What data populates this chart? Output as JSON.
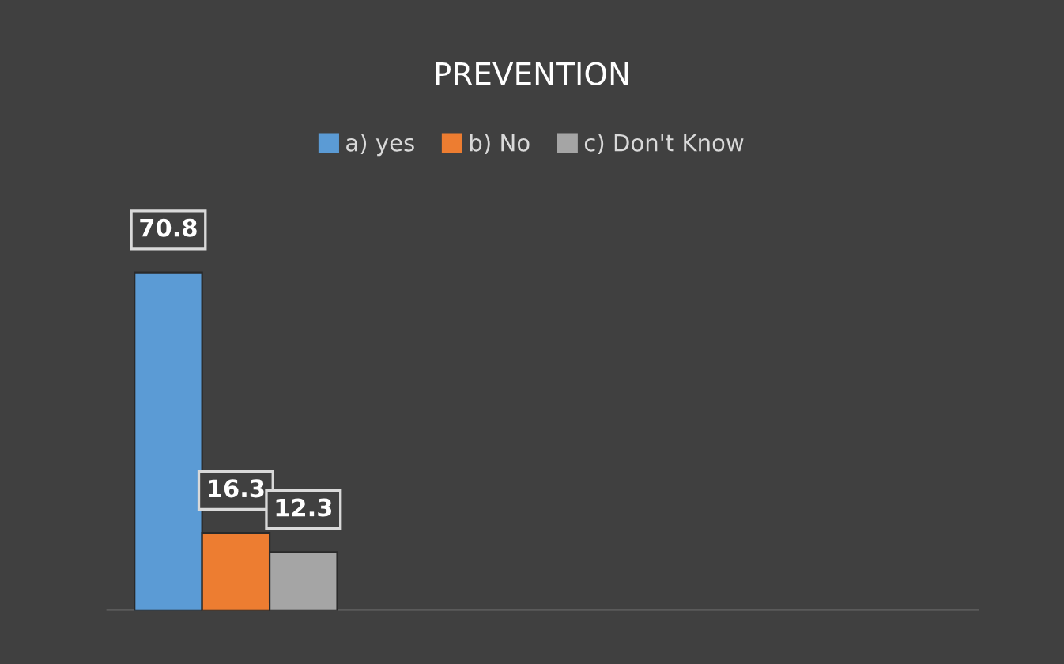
{
  "chart_data": {
    "type": "bar",
    "title": "PREVENTION",
    "categories": [
      null
    ],
    "series": [
      {
        "name": "a) yes",
        "color": "#5b9bd5",
        "values": [
          70.8
        ]
      },
      {
        "name": "b) No",
        "color": "#ed7d31",
        "values": [
          16.3
        ]
      },
      {
        "name": "c) Don't Know",
        "color": "#a5a5a5",
        "values": [
          12.3
        ]
      }
    ],
    "data_labels": true,
    "legend": "top"
  }
}
